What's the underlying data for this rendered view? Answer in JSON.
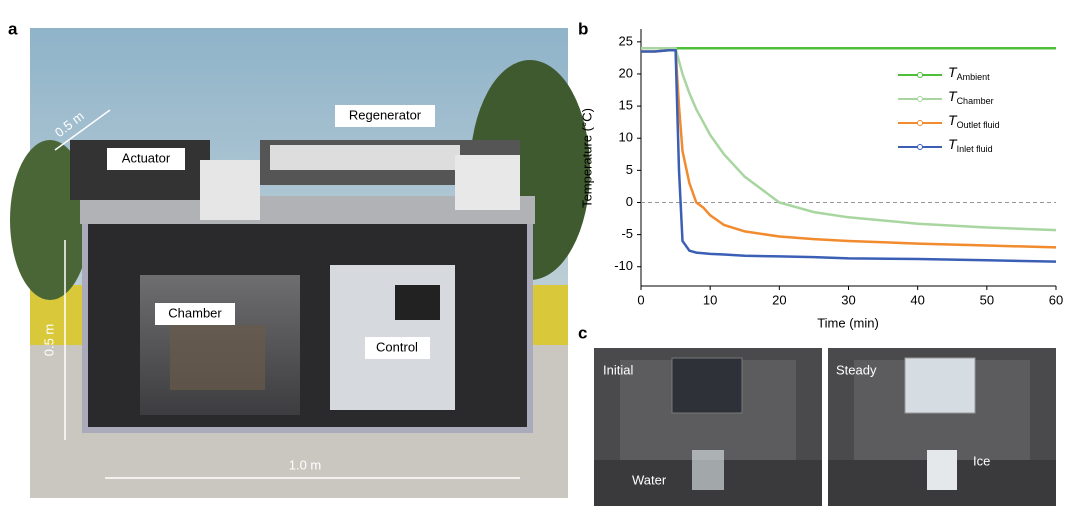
{
  "panel_a": {
    "label": "a",
    "annotations": {
      "actuator": "Actuator",
      "regenerator": "Regenerator",
      "chamber": "Chamber",
      "control": "Control",
      "depth": "0.5 m",
      "height": "0.5 m",
      "width": "1.0 m"
    }
  },
  "panel_b": {
    "label": "b"
  },
  "panel_c": {
    "label": "c",
    "left": {
      "state": "Initial",
      "object": "Water"
    },
    "right": {
      "state": "Steady",
      "object": "Ice"
    }
  },
  "chart_data": {
    "type": "line",
    "x_label": "Time (min)",
    "y_label": "Temperature (°C)",
    "x": [
      0,
      2,
      4,
      5,
      5.5,
      6,
      7,
      8,
      9,
      10,
      12,
      15,
      20,
      25,
      30,
      40,
      50,
      60
    ],
    "series": [
      {
        "name": "T",
        "subscript": "Ambient",
        "color": "#4fbf3a",
        "values": [
          24,
          24,
          24,
          24,
          24,
          24,
          24,
          24,
          24,
          24,
          24,
          24,
          24,
          24,
          24,
          24,
          24,
          24
        ]
      },
      {
        "name": "T",
        "subscript": "Chamber",
        "color": "#a8d5a0",
        "values": [
          24,
          24,
          24,
          24,
          22,
          20,
          17,
          14.5,
          12.5,
          10.5,
          7.5,
          4,
          0,
          -1.5,
          -2.3,
          -3.3,
          -3.9,
          -4.3
        ]
      },
      {
        "name": "T",
        "subscript": "Outlet fluid",
        "color": "#f28a2e",
        "values": [
          23.5,
          23.5,
          23.7,
          23.7,
          15,
          8,
          3,
          0,
          -0.8,
          -2,
          -3.5,
          -4.5,
          -5.3,
          -5.7,
          -6,
          -6.4,
          -6.7,
          -7
        ]
      },
      {
        "name": "T",
        "subscript": "Inlet fluid",
        "color": "#3a5fb5",
        "values": [
          23.5,
          23.5,
          23.7,
          23.7,
          5,
          -6,
          -7.5,
          -7.8,
          -7.9,
          -8,
          -8.1,
          -8.3,
          -8.4,
          -8.5,
          -8.7,
          -8.8,
          -9,
          -9.2
        ]
      }
    ],
    "xlim": [
      0,
      60
    ],
    "xticks": [
      0,
      10,
      20,
      30,
      40,
      50,
      60
    ],
    "ylim": [
      -13,
      27
    ],
    "yticks": [
      -10,
      -5,
      0,
      5,
      10,
      15,
      20,
      25
    ],
    "reference_line": 0
  }
}
